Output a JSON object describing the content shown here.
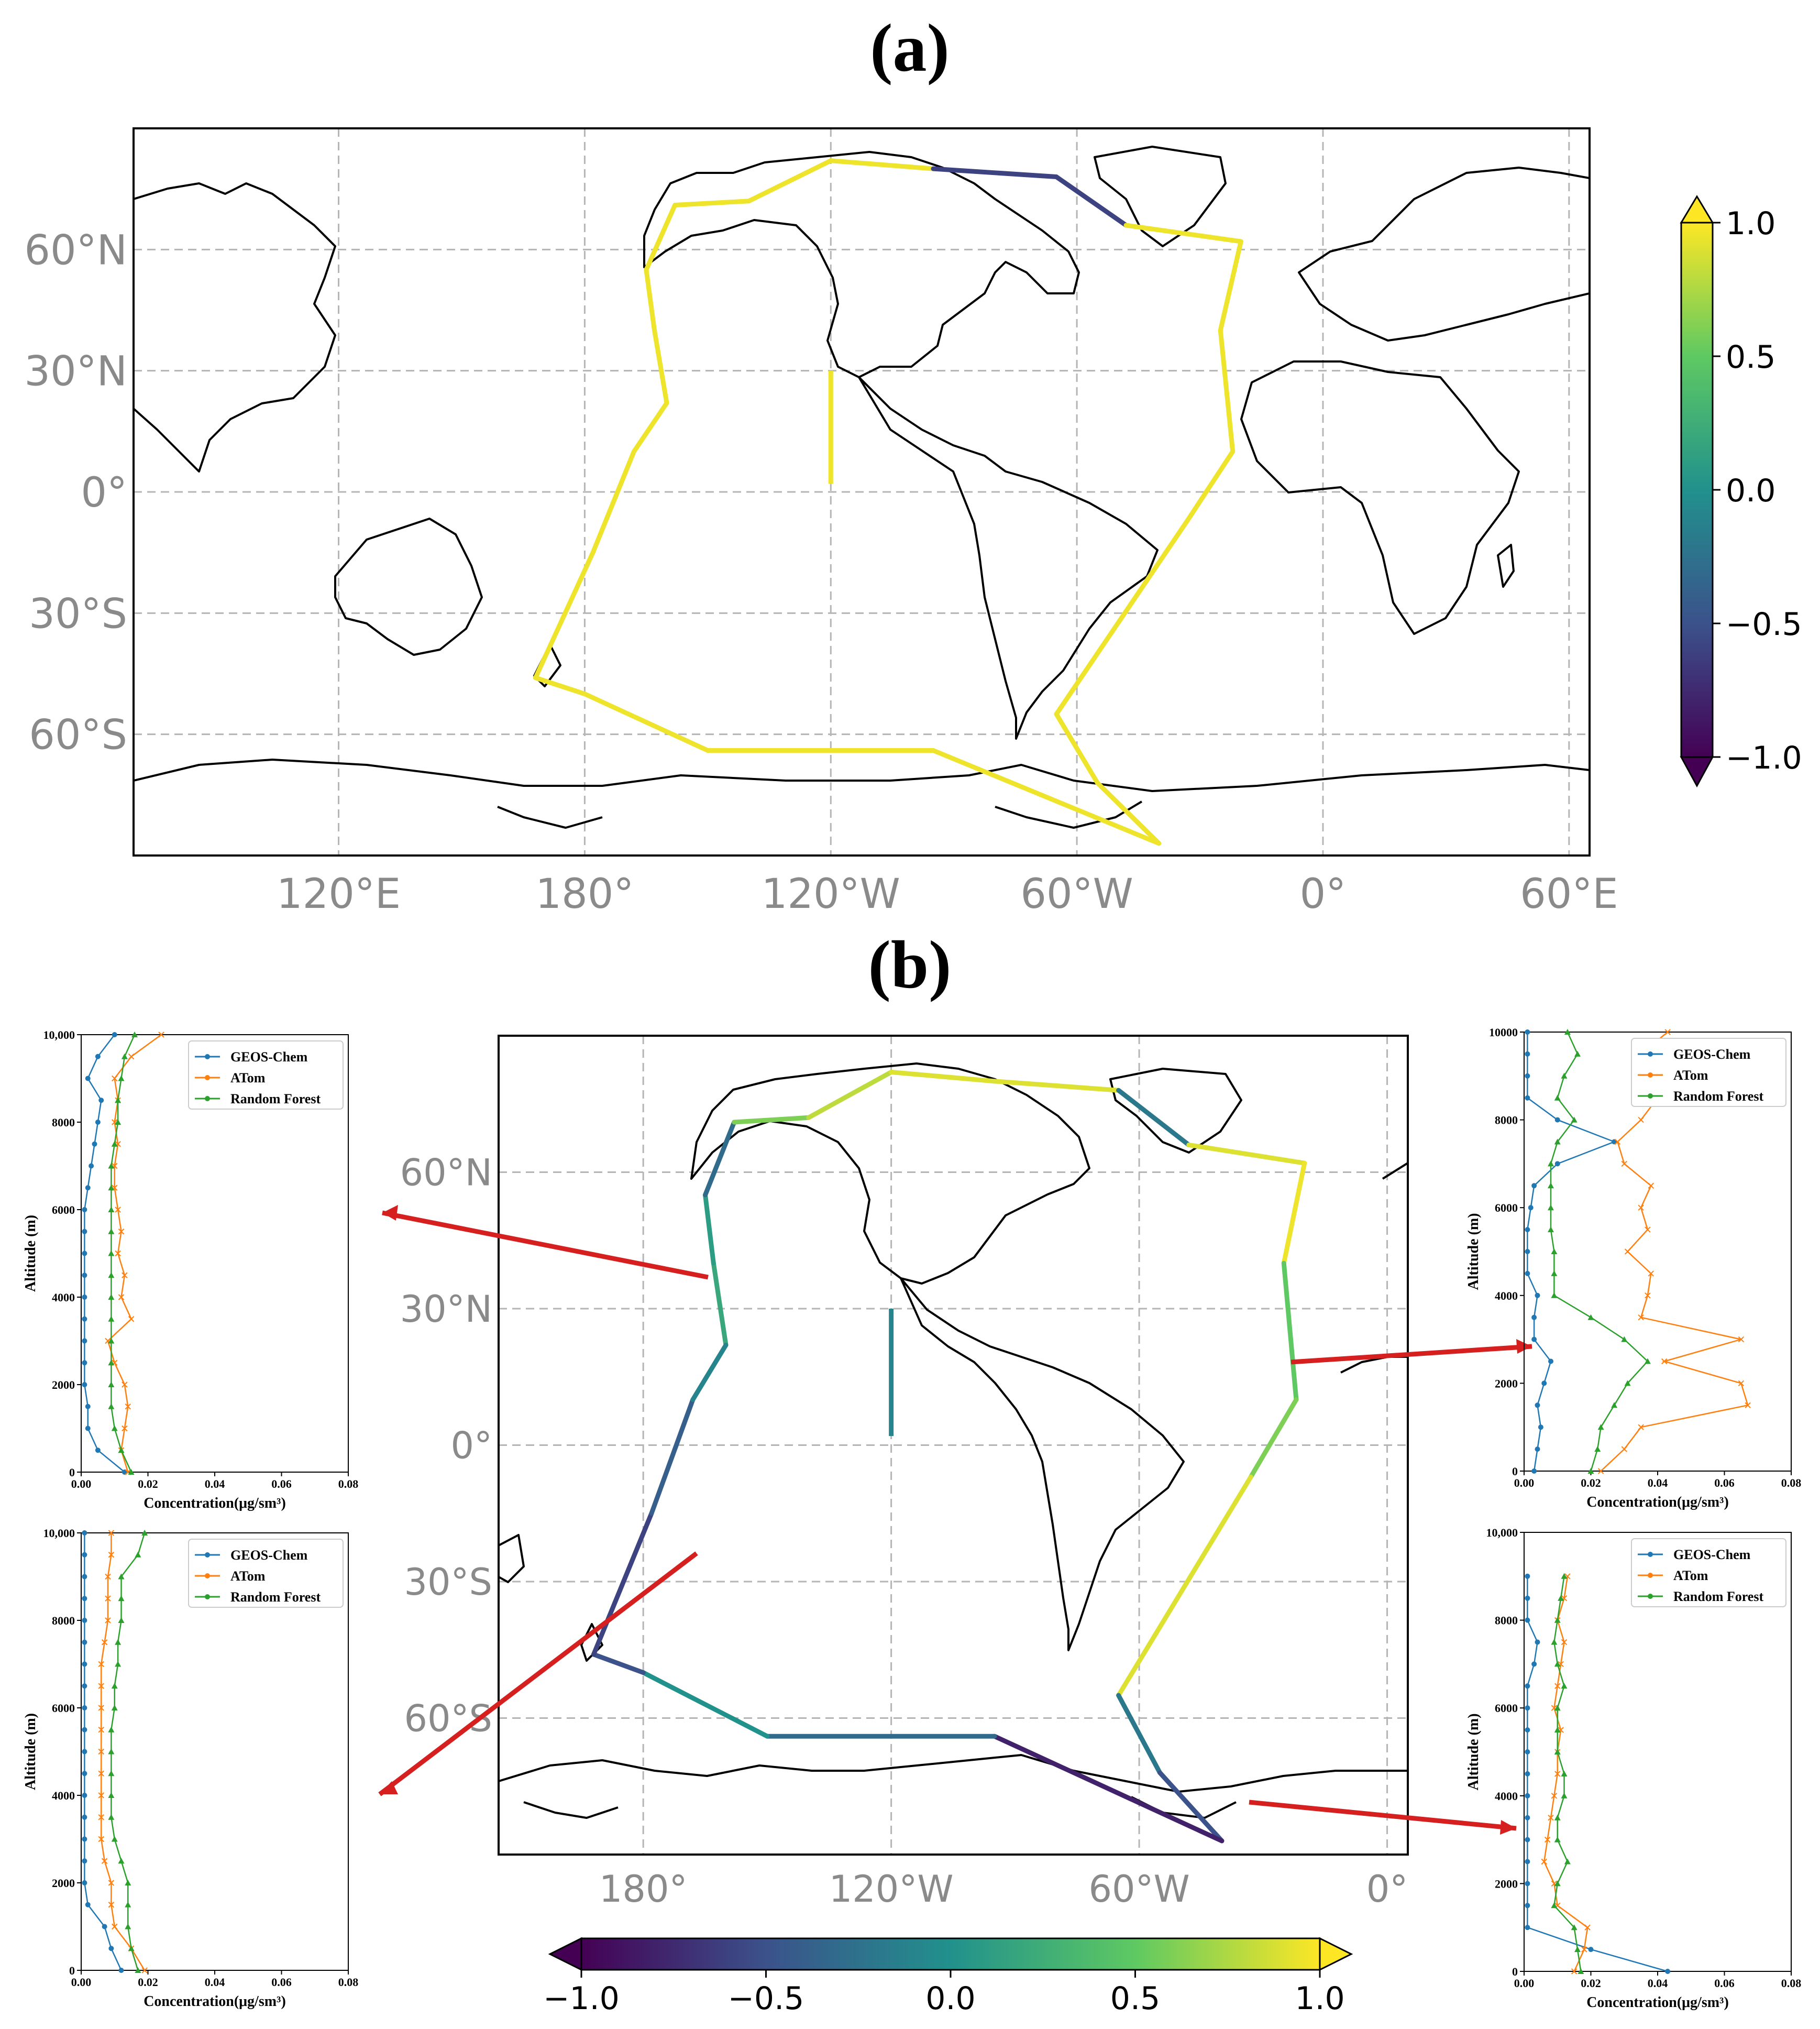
{
  "panel_a": {
    "title": "(a)",
    "lon_ticks": [
      "120°E",
      "180°",
      "120°W",
      "60°W",
      "0°",
      "60°E"
    ],
    "lat_ticks": [
      "60°N",
      "30°N",
      "0°",
      "30°S",
      "60°S"
    ],
    "colorbar_ticks": [
      "1.0",
      "0.5",
      "0.0",
      "−0.5",
      "−1.0"
    ]
  },
  "panel_b": {
    "title": "(b)",
    "lon_ticks": [
      "180°",
      "120°W",
      "60°W",
      "0°"
    ],
    "lat_ticks": [
      "60°N",
      "30°N",
      "0°",
      "30°S",
      "60°S"
    ],
    "colorbar_ticks": [
      "−1.0",
      "−0.5",
      "0.0",
      "0.5",
      "1.0"
    ]
  },
  "colors": {
    "GEOS-Chem": "#1f77b4",
    "ATom": "#ff7f0e",
    "Random Forest": "#2ca02c",
    "arrow": "#d62020",
    "viridis": [
      "#440154",
      "#3b528b",
      "#21918c",
      "#5ec962",
      "#fde725"
    ]
  },
  "chart_data": [
    {
      "type": "scatter",
      "name": "map_a",
      "title": "(a)",
      "xlim": [
        -290,
        65
      ],
      "ylim": [
        -90,
        90
      ],
      "colorbar_range": [
        -1.0,
        1.0
      ],
      "grid": true,
      "legend": "colorbar right",
      "track": [
        {
          "lon": -160,
          "lat": 22
        },
        {
          "lon": -163,
          "lat": 40
        },
        {
          "lon": -165,
          "lat": 55
        },
        {
          "lon": -158,
          "lat": 71
        },
        {
          "lon": -140,
          "lat": 72
        },
        {
          "lon": -120,
          "lat": 82
        },
        {
          "lon": -95,
          "lat": 80
        },
        {
          "lon": -65,
          "lat": 78
        },
        {
          "lon": -48,
          "lat": 66
        },
        {
          "lon": -20,
          "lat": 62
        },
        {
          "lon": -25,
          "lat": 40
        },
        {
          "lon": -22,
          "lat": 10
        },
        {
          "lon": -33,
          "lat": -7
        },
        {
          "lon": -65,
          "lat": -55
        },
        {
          "lon": -55,
          "lat": -72
        },
        {
          "lon": -40,
          "lat": -87
        },
        {
          "lon": -95,
          "lat": -64
        },
        {
          "lon": -150,
          "lat": -64
        },
        {
          "lon": -180,
          "lat": -50
        },
        {
          "lon": -192,
          "lat": -46
        },
        {
          "lon": -178,
          "lat": -15
        },
        {
          "lon": -168,
          "lat": 10
        }
      ]
    },
    {
      "type": "scatter",
      "name": "map_b",
      "title": "(b)",
      "xlim": [
        -215,
        5
      ],
      "ylim": [
        -90,
        90
      ],
      "colorbar_range": [
        -1.0,
        1.0
      ],
      "grid": true,
      "legend": "colorbar bottom"
    },
    {
      "type": "line",
      "name": "profile_top_left",
      "xlabel": "Concentration($\\mu g/sm^3$)",
      "ylabel": "Altitude (m)",
      "xlim": [
        0,
        0.08
      ],
      "ylim": [
        0,
        10000
      ],
      "xticks": [
        "0.00",
        "0.02",
        "0.04",
        "0.06",
        "0.08"
      ],
      "yticks": [
        "0",
        "2000",
        "4000",
        "6000",
        "8000",
        "10,000"
      ],
      "legend": "top-right",
      "y": [
        0,
        500,
        1000,
        1500,
        2000,
        2500,
        3000,
        3500,
        4000,
        4500,
        5000,
        5500,
        6000,
        6500,
        7000,
        7500,
        8000,
        8500,
        9000,
        9500,
        10000
      ],
      "series": [
        {
          "name": "GEOS-Chem",
          "marker": "circle",
          "values": [
            0.013,
            0.005,
            0.002,
            0.002,
            0.001,
            0.001,
            0.001,
            0.001,
            0.001,
            0.001,
            0.001,
            0.001,
            0.001,
            0.002,
            0.003,
            0.004,
            0.005,
            0.006,
            0.002,
            0.005,
            0.01
          ]
        },
        {
          "name": "ATom",
          "marker": "x",
          "values": [
            0.014,
            0.012,
            0.013,
            0.014,
            0.013,
            0.01,
            0.008,
            0.015,
            0.012,
            0.013,
            0.011,
            0.012,
            0.011,
            0.01,
            0.01,
            0.011,
            0.01,
            0.011,
            0.01,
            0.015,
            0.024
          ]
        },
        {
          "name": "Random Forest",
          "marker": "triangle",
          "values": [
            0.015,
            0.012,
            0.01,
            0.009,
            0.009,
            0.009,
            0.009,
            0.009,
            0.009,
            0.009,
            0.009,
            0.009,
            0.009,
            0.009,
            0.009,
            0.01,
            0.011,
            0.011,
            0.012,
            0.013,
            0.016
          ]
        }
      ]
    },
    {
      "type": "line",
      "name": "profile_bottom_left",
      "xlabel": "Concentration($\\mu g/sm^3$)",
      "ylabel": "Altitude (m)",
      "xlim": [
        0,
        0.08
      ],
      "ylim": [
        0,
        10000
      ],
      "xticks": [
        "0.00",
        "0.02",
        "0.04",
        "0.06",
        "0.08"
      ],
      "yticks": [
        "0",
        "2000",
        "4000",
        "6000",
        "8000",
        "10,000"
      ],
      "legend": "top-right",
      "y": [
        0,
        500,
        1000,
        1500,
        2000,
        2500,
        3000,
        3500,
        4000,
        4500,
        5000,
        5500,
        6000,
        6500,
        7000,
        7500,
        8000,
        8500,
        9000,
        9500,
        10000
      ],
      "series": [
        {
          "name": "GEOS-Chem",
          "marker": "circle",
          "values": [
            0.012,
            0.009,
            0.007,
            0.002,
            0.001,
            0.001,
            0.001,
            0.001,
            0.001,
            0.001,
            0.001,
            0.001,
            0.001,
            0.001,
            0.001,
            0.001,
            0.001,
            0.001,
            0.001,
            0.001,
            0.001
          ]
        },
        {
          "name": "ATom",
          "marker": "x",
          "values": [
            0.019,
            0.015,
            0.01,
            0.009,
            0.009,
            0.007,
            0.006,
            0.006,
            0.006,
            0.006,
            0.006,
            0.006,
            0.006,
            0.006,
            0.006,
            0.007,
            0.008,
            0.008,
            0.008,
            0.009,
            0.009
          ]
        },
        {
          "name": "Random Forest",
          "marker": "triangle",
          "values": [
            0.017,
            0.015,
            0.014,
            0.014,
            0.014,
            0.012,
            0.01,
            0.009,
            0.009,
            0.009,
            0.009,
            0.009,
            0.01,
            0.01,
            0.011,
            0.011,
            0.012,
            0.012,
            0.012,
            0.017,
            0.019
          ]
        }
      ]
    },
    {
      "type": "line",
      "name": "profile_top_right",
      "xlabel": "Concentration($\\mu g/sm^3$)",
      "ylabel": "Altitude (m)",
      "xlim": [
        0,
        0.08
      ],
      "ylim": [
        0,
        10000
      ],
      "xticks": [
        "0.00",
        "0.02",
        "0.04",
        "0.06",
        "0.08"
      ],
      "yticks": [
        "0",
        "2000",
        "4000",
        "6000",
        "8000",
        "10000"
      ],
      "legend": "top-right",
      "y": [
        0,
        500,
        1000,
        1500,
        2000,
        2500,
        3000,
        3500,
        4000,
        4500,
        5000,
        5500,
        6000,
        6500,
        7000,
        7500,
        8000,
        8500,
        9000,
        9500,
        10000
      ],
      "series": [
        {
          "name": "GEOS-Chem",
          "marker": "circle",
          "values": [
            0.003,
            0.004,
            0.005,
            0.004,
            0.006,
            0.008,
            0.003,
            0.003,
            0.004,
            0.001,
            0.001,
            0.001,
            0.002,
            0.003,
            0.01,
            0.027,
            0.01,
            0.001,
            0.001,
            0.001,
            0.001
          ]
        },
        {
          "name": "ATom",
          "marker": "x",
          "values": [
            0.023,
            0.03,
            0.035,
            0.067,
            0.065,
            0.042,
            0.065,
            0.035,
            0.037,
            0.038,
            0.031,
            0.037,
            0.035,
            0.038,
            0.03,
            0.028,
            0.035,
            0.04,
            0.038,
            0.035,
            0.043
          ]
        },
        {
          "name": "Random Forest",
          "marker": "triangle",
          "values": [
            0.02,
            0.022,
            0.023,
            0.027,
            0.031,
            0.037,
            0.03,
            0.02,
            0.009,
            0.009,
            0.009,
            0.008,
            0.008,
            0.008,
            0.008,
            0.01,
            0.015,
            0.01,
            0.012,
            0.016,
            0.013
          ]
        }
      ]
    },
    {
      "type": "line",
      "name": "profile_bottom_right",
      "xlabel": "Concentration($\\mu g/sm^3$)",
      "ylabel": "Altitude (m)",
      "xlim": [
        0,
        0.08
      ],
      "ylim": [
        0,
        10000
      ],
      "xticks": [
        "0.00",
        "0.02",
        "0.04",
        "0.06",
        "0.08"
      ],
      "yticks": [
        "0",
        "2000",
        "4000",
        "6000",
        "8000",
        "10,000"
      ],
      "legend": "top-right",
      "y": [
        0,
        500,
        1000,
        1500,
        2000,
        2500,
        3000,
        3500,
        4000,
        4500,
        5000,
        5500,
        6000,
        6500,
        7000,
        7500,
        8000,
        8500,
        9000
      ],
      "series": [
        {
          "name": "GEOS-Chem",
          "marker": "circle",
          "values": [
            0.043,
            0.02,
            0.001,
            0.001,
            0.001,
            0.001,
            0.001,
            0.001,
            0.001,
            0.001,
            0.001,
            0.001,
            0.001,
            0.001,
            0.003,
            0.004,
            0.001,
            0.001,
            0.001
          ]
        },
        {
          "name": "ATom",
          "marker": "x",
          "values": [
            0.015,
            0.018,
            0.019,
            0.01,
            0.009,
            0.006,
            0.007,
            0.008,
            0.009,
            0.01,
            0.01,
            0.011,
            0.009,
            0.01,
            0.011,
            0.012,
            0.01,
            0.012,
            0.013
          ]
        },
        {
          "name": "Random Forest",
          "marker": "triangle",
          "values": [
            0.017,
            0.016,
            0.015,
            0.009,
            0.01,
            0.013,
            0.01,
            0.01,
            0.012,
            0.012,
            0.01,
            0.01,
            0.01,
            0.012,
            0.01,
            0.009,
            0.01,
            0.011,
            0.012
          ]
        }
      ]
    }
  ]
}
